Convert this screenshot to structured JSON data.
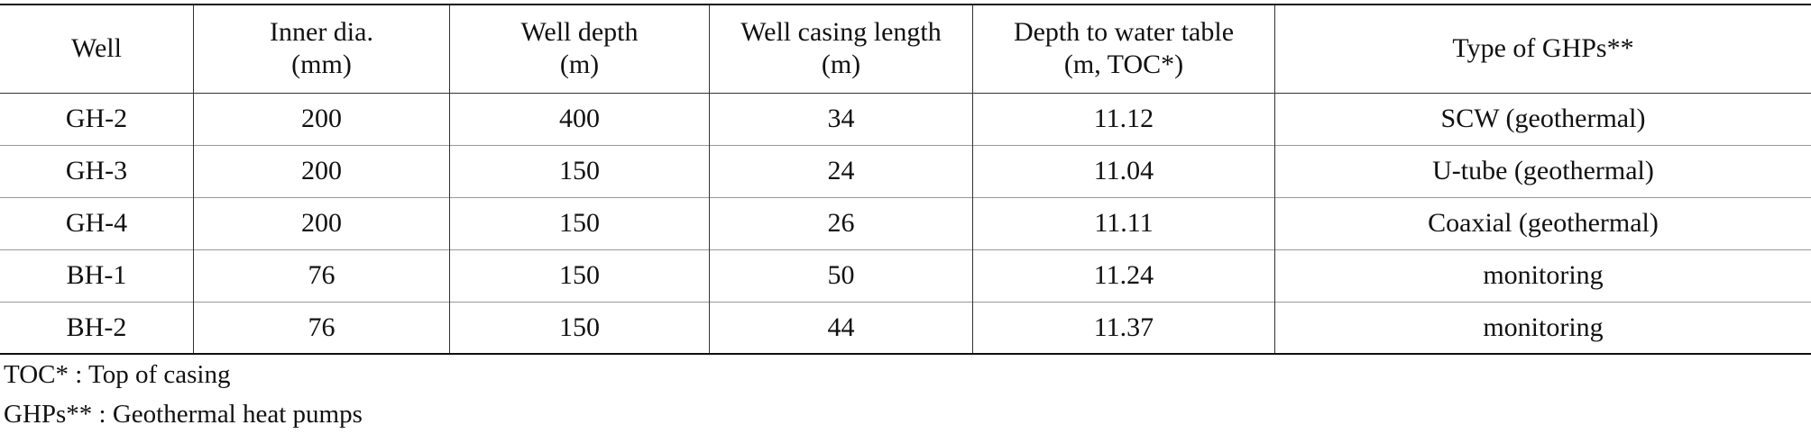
{
  "table": {
    "header": [
      [
        "Well"
      ],
      [
        "Inner dia.",
        "(mm)"
      ],
      [
        "Well depth",
        "(m)"
      ],
      [
        "Well casing length",
        "(m)"
      ],
      [
        "Depth to water table",
        "(m, TOC*)"
      ],
      [
        "Type of GHPs**"
      ]
    ],
    "rows": [
      [
        "GH-2",
        200,
        400,
        34,
        11.12,
        "SCW (geothermal)"
      ],
      [
        "GH-3",
        200,
        150,
        24,
        11.04,
        "U-tube (geothermal)"
      ],
      [
        "GH-4",
        200,
        150,
        26,
        11.11,
        "Coaxial (geothermal)"
      ],
      [
        "BH-1",
        76,
        150,
        50,
        11.24,
        "monitoring"
      ],
      [
        "BH-2",
        76,
        150,
        44,
        11.37,
        "monitoring"
      ]
    ]
  },
  "footnotes": [
    "TOC* : Top of casing",
    "GHPs** : Geothermal heat pumps"
  ]
}
